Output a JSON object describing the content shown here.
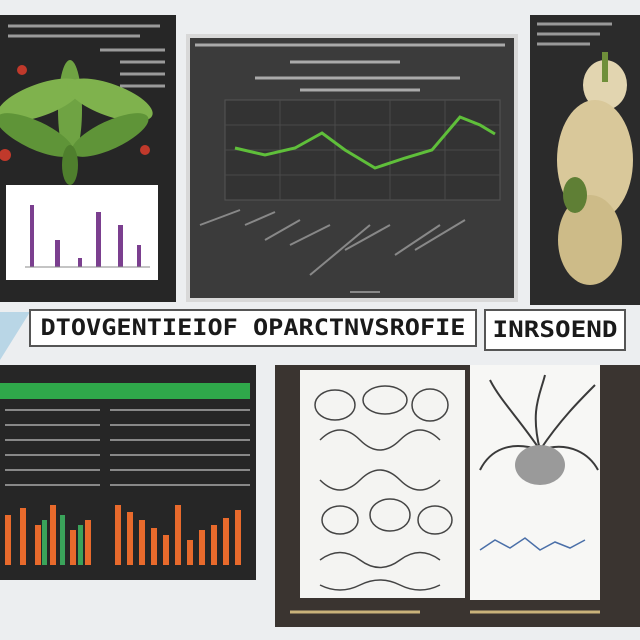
{
  "banner": {
    "left": "DTOVGENTIEIOF OPARCTNVSROFIE",
    "right": "INRSOEND"
  }
}
